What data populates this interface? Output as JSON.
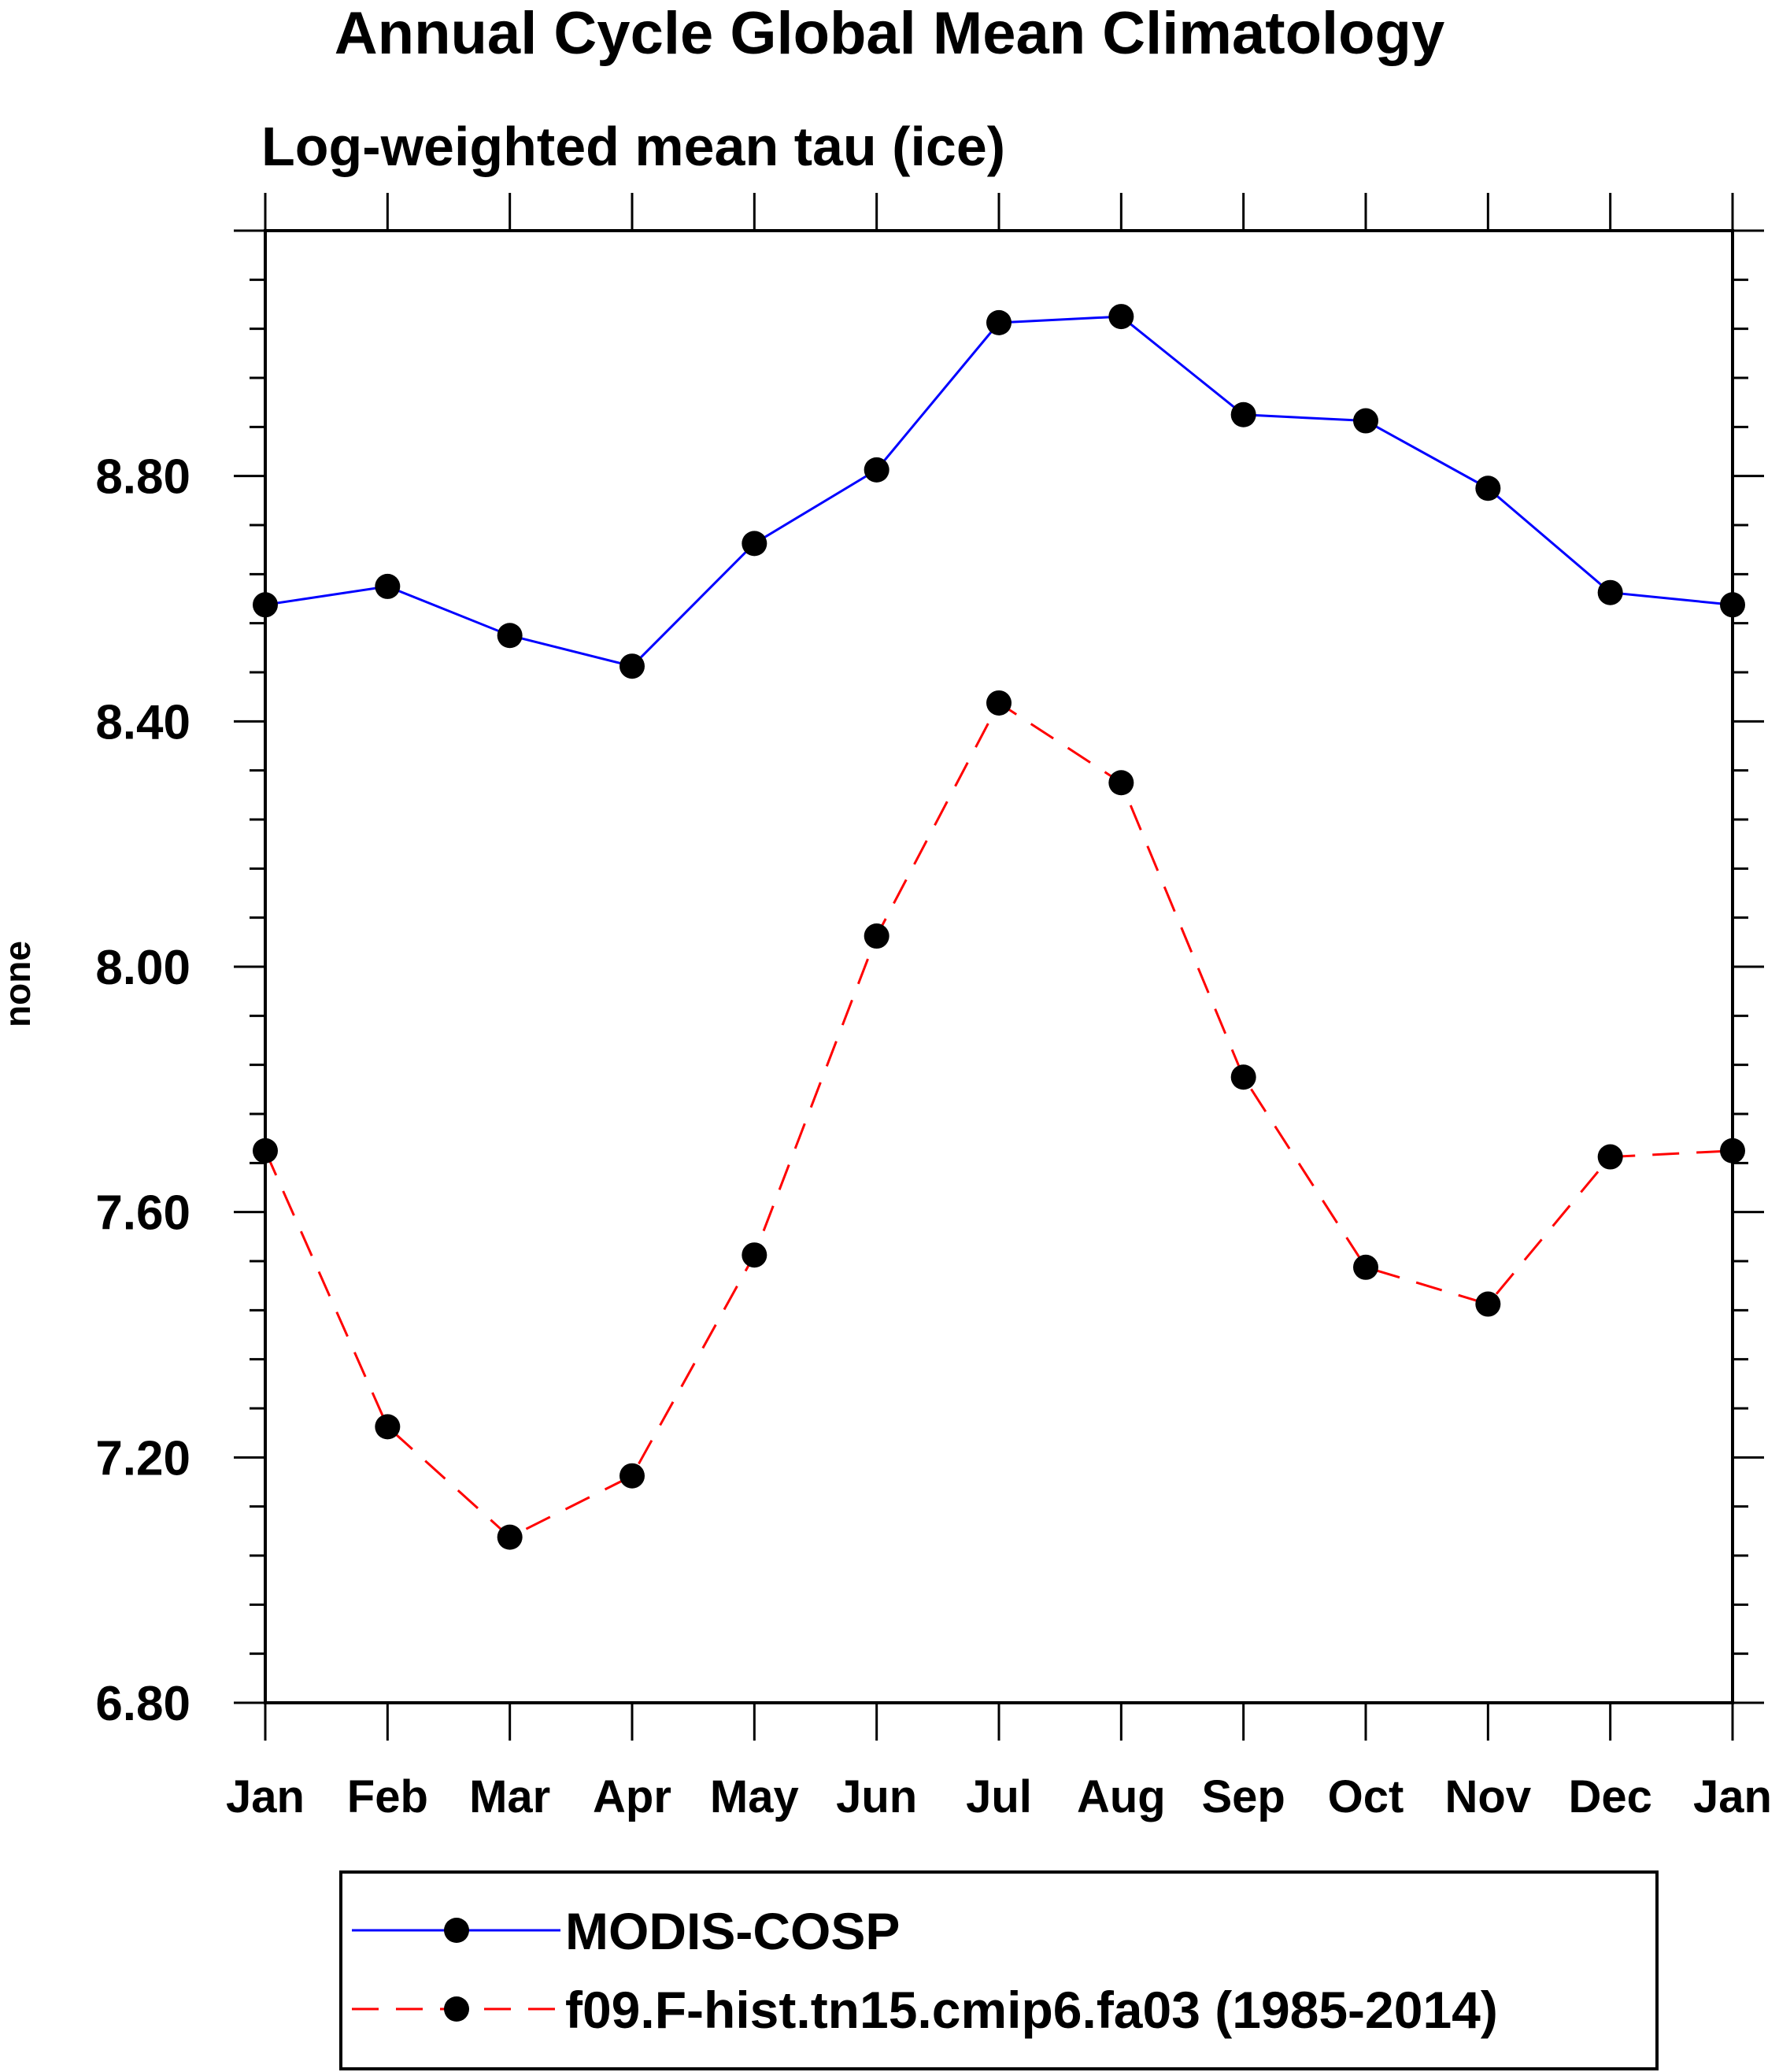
{
  "chart_data": {
    "type": "line",
    "title": "Annual Cycle Global Mean Climatology",
    "subtitle": "Log-weighted mean tau (ice)",
    "xlabel": "",
    "ylabel": "none",
    "categories": [
      "Jan",
      "Feb",
      "Mar",
      "Apr",
      "May",
      "Jun",
      "Jul",
      "Aug",
      "Sep",
      "Oct",
      "Nov",
      "Dec",
      "Jan"
    ],
    "yticks": [
      "6.80",
      "7.20",
      "7.60",
      "8.00",
      "8.40",
      "8.80"
    ],
    "ylim": [
      6.8,
      9.2
    ],
    "grid": false,
    "legend_position": "bottom",
    "series": [
      {
        "name": "MODIS-COSP",
        "color": "#0000ff",
        "line_style": "solid",
        "marker": "filled-circle",
        "values": [
          8.59,
          8.62,
          8.54,
          8.49,
          8.69,
          8.81,
          9.05,
          9.06,
          8.9,
          8.89,
          8.78,
          8.61,
          8.59
        ]
      },
      {
        "name": "f09.F-hist.tn15.cmip6.fa03 (1985-2014)",
        "color": "#ff0000",
        "line_style": "dashed",
        "marker": "filled-circle",
        "values": [
          7.7,
          7.25,
          7.07,
          7.17,
          7.53,
          8.05,
          8.43,
          8.3,
          7.82,
          7.51,
          7.45,
          7.69,
          7.7
        ]
      }
    ]
  }
}
